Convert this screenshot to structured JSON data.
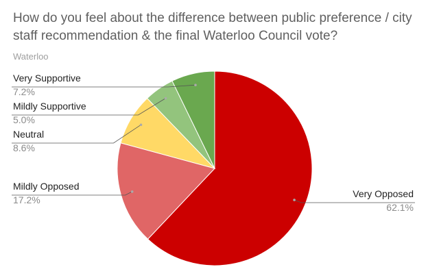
{
  "chart_data": {
    "type": "pie",
    "title": "How do you feel about the difference between public preference / city staff recommendation & the final Waterloo Council vote?",
    "subtitle": "Waterloo",
    "slices": [
      {
        "label": "Very Opposed",
        "value": 62.1,
        "value_label": "62.1%",
        "color": "#cc0000"
      },
      {
        "label": "Mildly Opposed",
        "value": 17.2,
        "value_label": "17.2%",
        "color": "#e06666"
      },
      {
        "label": "Neutral",
        "value": 8.6,
        "value_label": "8.6%",
        "color": "#ffd966"
      },
      {
        "label": "Mildly Supportive",
        "value": 5.0,
        "value_label": "5.0%",
        "color": "#93c47d"
      },
      {
        "label": "Very Supportive",
        "value": 7.2,
        "value_label": "7.2%",
        "color": "#6aa84f"
      }
    ],
    "legend": "labels with leader lines"
  }
}
